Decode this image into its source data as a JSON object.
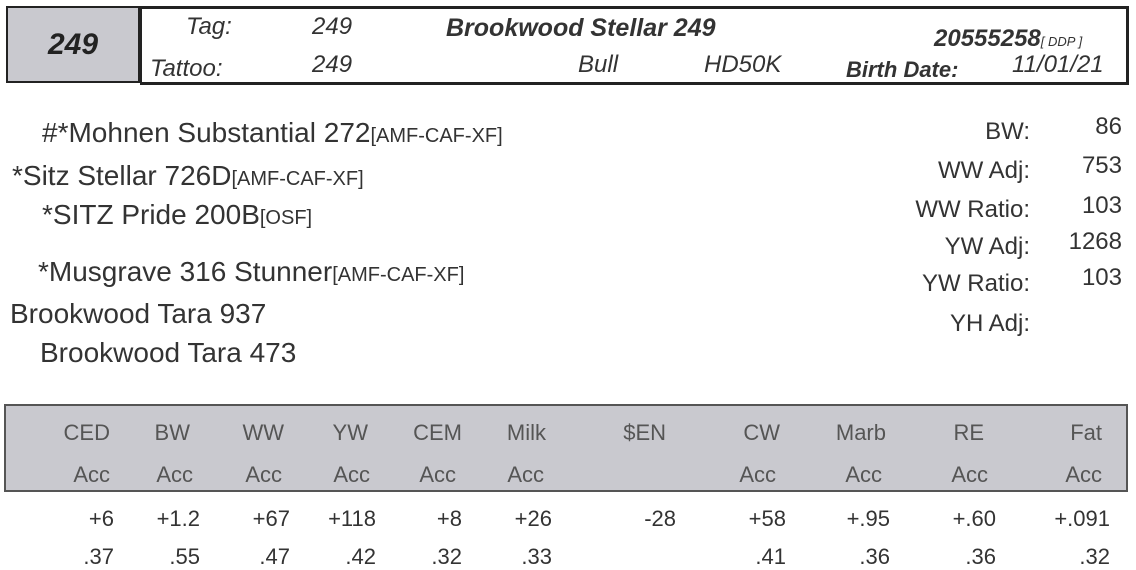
{
  "lot_number": "249",
  "header": {
    "tag_label": "Tag:",
    "tag_value": "249",
    "tattoo_label": "Tattoo:",
    "tattoo_value": "249",
    "name": "Brookwood Stellar 249",
    "sex": "Bull",
    "test": "HD50K",
    "registration": "20555258",
    "registration_suffix": "[ DDP ]",
    "birth_date_label": "Birth Date:",
    "birth_date": "11/01/21"
  },
  "pedigree": {
    "sire_sire": {
      "name": "#*Mohnen Substantial 272",
      "tag": "[AMF-CAF-XF]"
    },
    "sire": {
      "name": "*Sitz Stellar 726D",
      "tag": "[AMF-CAF-XF]"
    },
    "sire_dam": {
      "name": "*SITZ Pride 200B",
      "tag": "[OSF]"
    },
    "dam_sire": {
      "name": "*Musgrave 316 Stunner",
      "tag": "[AMF-CAF-XF]"
    },
    "dam": {
      "name": "Brookwood Tara 937",
      "tag": ""
    },
    "dam_dam": {
      "name": "Brookwood Tara 473",
      "tag": ""
    }
  },
  "stats": [
    {
      "label": "BW:",
      "value": "86"
    },
    {
      "label": "WW Adj:",
      "value": "753"
    },
    {
      "label": "WW Ratio:",
      "value": "103"
    },
    {
      "label": "YW Adj:",
      "value": "1268"
    },
    {
      "label": "YW Ratio:",
      "value": "103"
    },
    {
      "label": "YH Adj:",
      "value": ""
    }
  ],
  "epd": {
    "columns": [
      {
        "name": "CED",
        "acc_label": "Acc",
        "value": "+6",
        "acc": ".37"
      },
      {
        "name": "BW",
        "acc_label": "Acc",
        "value": "+1.2",
        "acc": ".55"
      },
      {
        "name": "WW",
        "acc_label": "Acc",
        "value": "+67",
        "acc": ".47"
      },
      {
        "name": "YW",
        "acc_label": "Acc",
        "value": "+118",
        "acc": ".42"
      },
      {
        "name": "CEM",
        "acc_label": "Acc",
        "value": "+8",
        "acc": ".32"
      },
      {
        "name": "Milk",
        "acc_label": "Acc",
        "value": "+26",
        "acc": ".33"
      },
      {
        "name": "$EN",
        "acc_label": "",
        "value": "-28",
        "acc": ""
      },
      {
        "name": "CW",
        "acc_label": "Acc",
        "value": "+58",
        "acc": ".41"
      },
      {
        "name": "Marb",
        "acc_label": "Acc",
        "value": "+.95",
        "acc": ".36"
      },
      {
        "name": "RE",
        "acc_label": "Acc",
        "value": "+.60",
        "acc": ".36"
      },
      {
        "name": "Fat",
        "acc_label": "Acc",
        "value": "+.091",
        "acc": ".32"
      }
    ]
  }
}
